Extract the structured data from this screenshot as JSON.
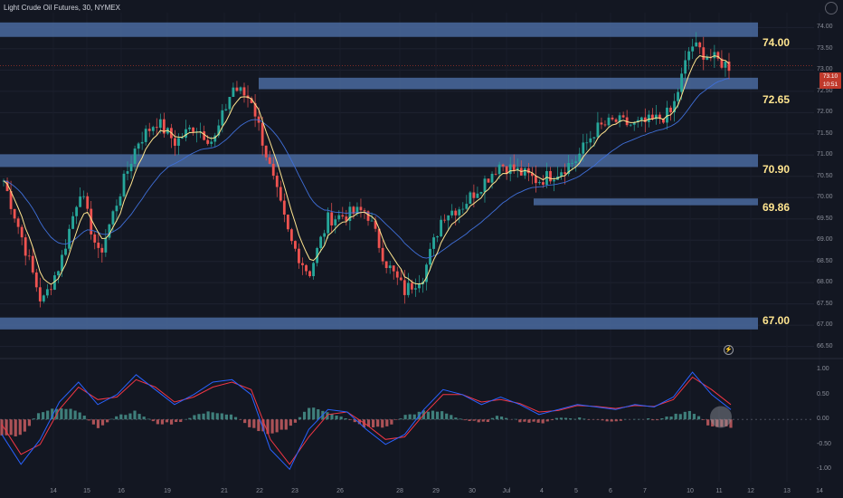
{
  "header": {
    "title": "Light Crude Oil Futures, 30, NYMEX"
  },
  "price_tag": {
    "price": "73.10",
    "countdown": "10:51"
  },
  "zones": [
    {
      "label": "74.00",
      "from": 73.78,
      "to": 74.12,
      "start": "left"
    },
    {
      "label": "72.65",
      "from": 72.55,
      "to": 72.82,
      "start": "22"
    },
    {
      "label": "70.90",
      "from": 70.72,
      "to": 71.02,
      "start": "left"
    },
    {
      "label": "69.86",
      "from": 69.82,
      "to": 69.98,
      "start": "4"
    },
    {
      "label": "67.00",
      "from": 66.9,
      "to": 67.18,
      "start": "left"
    }
  ],
  "colors": {
    "background": "#131722",
    "zone": "#4a6a9f",
    "zone_label": "#ffe58f",
    "candle_up": "#26a69a",
    "candle_down": "#ef5350",
    "fast_ma": "#ffe58f",
    "slow_ma": "#3f6fd8",
    "osc_blue": "#2962ff",
    "osc_red": "#f23645"
  },
  "icons": {
    "flash": "flash-icon",
    "settings": "settings-icon"
  },
  "chart_data": [
    {
      "type": "candlestick",
      "title": "Light Crude Oil Futures, 30, NYMEX",
      "x_ticks": [
        "14",
        "15",
        "16",
        "19",
        "21",
        "22",
        "23",
        "26",
        "28",
        "29",
        "30",
        "Jul",
        "4",
        "5",
        "6",
        "7",
        "10",
        "11",
        "12",
        "13",
        "14"
      ],
      "y_ticks": [
        "74.00",
        "73.50",
        "73.00",
        "72.50",
        "72.00",
        "71.50",
        "71.00",
        "70.50",
        "70.00",
        "69.50",
        "69.00",
        "68.50",
        "68.00",
        "67.50",
        "67.00",
        "66.50"
      ],
      "ylim": [
        66.3,
        74.35
      ],
      "last_price": 73.1,
      "approx_closes": [
        [
          "13",
          70.4
        ],
        [
          "13.5",
          69.0
        ],
        [
          "14",
          67.5
        ],
        [
          "14.5",
          68.5
        ],
        [
          "15",
          70.2
        ],
        [
          "15.5",
          68.6
        ],
        [
          "16",
          70.0
        ],
        [
          "16.5",
          71.3
        ],
        [
          "19",
          71.8
        ],
        [
          "19.5",
          71.3
        ],
        [
          "21",
          71.7
        ],
        [
          "21.5",
          71.3
        ],
        [
          "22",
          72.6
        ],
        [
          "22.5",
          72.3
        ],
        [
          "23",
          70.6
        ],
        [
          "23.5",
          69.0
        ],
        [
          "26",
          68.2
        ],
        [
          "26.5",
          69.5
        ],
        [
          "27",
          69.6
        ],
        [
          "27.5",
          69.7
        ],
        [
          "28",
          68.5
        ],
        [
          "28.5",
          67.8
        ],
        [
          "29",
          68.2
        ],
        [
          "29.5",
          69.6
        ],
        [
          "30",
          69.8
        ],
        [
          "30.5",
          70.3
        ],
        [
          "Jul",
          70.8
        ],
        [
          "Jul.5",
          70.6
        ],
        [
          "4",
          70.4
        ],
        [
          "4.5",
          70.6
        ],
        [
          "5",
          70.9
        ],
        [
          "5.5",
          71.6
        ],
        [
          "6",
          71.8
        ],
        [
          "6.5",
          71.7
        ],
        [
          "7",
          71.8
        ],
        [
          "7.5",
          72.0
        ],
        [
          "10",
          73.6
        ],
        [
          "10.5",
          73.3
        ],
        [
          "11",
          73.1
        ]
      ]
    },
    {
      "type": "oscillator",
      "y_ticks": [
        "1.00",
        "0.50",
        "0.00",
        "-0.50",
        "-1.00"
      ],
      "ylim": [
        -1.25,
        1.15
      ],
      "series": [
        {
          "values": [
            -0.3,
            -0.9,
            -0.4,
            0.35,
            0.75,
            0.3,
            0.5,
            0.9,
            0.6,
            0.3,
            0.5,
            0.75,
            0.8,
            0.5,
            -0.6,
            -1.0,
            -0.2,
            0.2,
            0.15,
            -0.2,
            -0.5,
            -0.3,
            0.2,
            0.6,
            0.5,
            0.3,
            0.45,
            0.3,
            0.1,
            0.2,
            0.3,
            0.25,
            0.2,
            0.3,
            0.25,
            0.45,
            0.95,
            0.5,
            0.2
          ]
        },
        {
          "values": [
            -0.1,
            -0.7,
            -0.5,
            0.2,
            0.65,
            0.4,
            0.45,
            0.8,
            0.65,
            0.35,
            0.45,
            0.65,
            0.75,
            0.6,
            -0.4,
            -0.9,
            -0.35,
            0.1,
            0.15,
            -0.1,
            -0.4,
            -0.35,
            0.1,
            0.5,
            0.5,
            0.35,
            0.4,
            0.32,
            0.15,
            0.18,
            0.28,
            0.26,
            0.22,
            0.28,
            0.26,
            0.4,
            0.85,
            0.6,
            0.3
          ]
        }
      ]
    }
  ]
}
